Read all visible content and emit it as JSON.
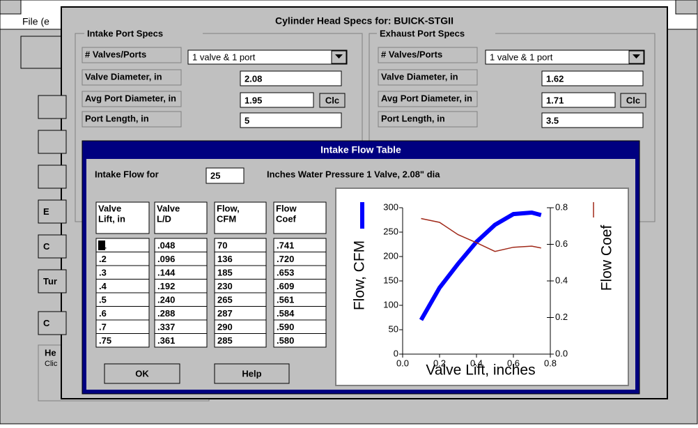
{
  "app": {
    "menu": "File (e",
    "side_buttons": [
      "E",
      "C",
      "Tur",
      "C"
    ],
    "help_title": "He",
    "help_text": "Clic"
  },
  "specs_dialog": {
    "title": "Cylinder Head Specs for: BUICK-STGII",
    "clc": "Clc",
    "intake": {
      "group": "Intake Port Specs",
      "valves_label": "# Valves/Ports",
      "valves_value": "1 valve & 1 port",
      "rows": [
        {
          "label": "Valve Diameter, in",
          "value": "2.08"
        },
        {
          "label": "Avg Port Diameter, in",
          "value": "1.95"
        },
        {
          "label": "Port Length, in",
          "value": "5"
        }
      ]
    },
    "exhaust": {
      "group": "Exhaust Port Specs",
      "valves_label": "# Valves/Ports",
      "valves_value": "1 valve & 1 port",
      "rows": [
        {
          "label": "Valve Diameter, in",
          "value": "1.62"
        },
        {
          "label": "Avg Port Diameter, in",
          "value": "1.71"
        },
        {
          "label": "Port Length, in",
          "value": "3.5"
        }
      ]
    }
  },
  "flow_dialog": {
    "title": "Intake Flow Table",
    "flow_for": "Intake Flow for",
    "pressure": "25",
    "pressure_text": "Inches Water Pressure  1 Valve,  2.08\" dia",
    "table": {
      "headers": [
        [
          "Valve",
          "Lift, in"
        ],
        [
          "Valve",
          "L/D"
        ],
        [
          "Flow,",
          "CFM"
        ],
        [
          "Flow",
          "Coef"
        ]
      ],
      "rows": [
        [
          ".1",
          ".048",
          "70",
          ".741"
        ],
        [
          ".2",
          ".096",
          "136",
          ".720"
        ],
        [
          ".3",
          ".144",
          "185",
          ".653"
        ],
        [
          ".4",
          ".192",
          "230",
          ".609"
        ],
        [
          ".5",
          ".240",
          "265",
          ".561"
        ],
        [
          ".6",
          ".288",
          "287",
          ".584"
        ],
        [
          ".7",
          ".337",
          "290",
          ".590"
        ],
        [
          ".75",
          ".361",
          "285",
          ".580"
        ]
      ]
    },
    "buttons": [
      "OK",
      "Help"
    ]
  },
  "chart_data": {
    "type": "line",
    "x_label": "Valve Lift, inches",
    "x": [
      0.1,
      0.2,
      0.3,
      0.4,
      0.5,
      0.6,
      0.7,
      0.75
    ],
    "series": [
      {
        "name": "Flow, CFM",
        "color": "#0000ff",
        "values": [
          70,
          136,
          185,
          230,
          265,
          287,
          290,
          285
        ]
      },
      {
        "name": "Flow Coef",
        "color": "#a02818",
        "axis": "y2",
        "values": [
          0.741,
          0.72,
          0.653,
          0.609,
          0.561,
          0.584,
          0.59,
          0.58
        ]
      }
    ],
    "xlim": [
      0,
      0.8
    ],
    "xticks": [
      {
        "value": 0,
        "label": "0.0"
      },
      0.2,
      0.4,
      0.6,
      0.8
    ],
    "ylim": [
      0,
      300
    ],
    "yticks": [
      0,
      50,
      100,
      150,
      200,
      250,
      300
    ],
    "y2lim": [
      0,
      0.8
    ],
    "y2ticks": [
      {
        "value": 0,
        "label": "0.0"
      },
      0.2,
      0.4,
      0.6,
      0.8
    ]
  }
}
